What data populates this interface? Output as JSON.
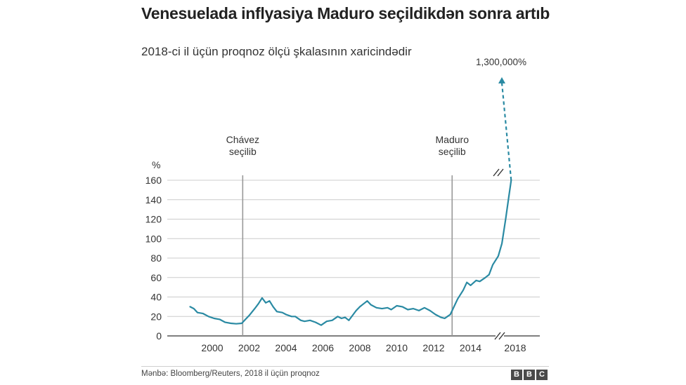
{
  "header": {
    "title": "Venesuelada inflyasiya Maduro seçildikdən sonra artıb",
    "subtitle": "2018-ci il üçün proqnoz ölçü şkalasının xaricindədir"
  },
  "footer": {
    "source": "Mənbə: Bloomberg/Reuters, 2018 il üçün proqnoz",
    "logo_letters": [
      "B",
      "B",
      "C"
    ]
  },
  "chart_data": {
    "type": "line",
    "title": "Venesuelada inflyasiya Maduro seçildikdən sonra artıb",
    "subtitle": "2018-ci il üçün proqnoz ölçü şkalasının xaricindədir",
    "ylabel": "%",
    "ylim": [
      0,
      160
    ],
    "yticks": [
      0,
      20,
      40,
      60,
      80,
      100,
      120,
      140,
      160
    ],
    "xticks": [
      "2000",
      "2002",
      "2004",
      "2006",
      "2008",
      "2010",
      "2012",
      "2014",
      "2018"
    ],
    "grid": true,
    "axis_break": "between 2015 and 2018",
    "colors": {
      "line": "#2a8aa3",
      "markers": "#999999",
      "grid": "#cccccc"
    },
    "events": [
      {
        "label_line1": "Chávez",
        "label_line2": "seçilib",
        "year": 2001.65
      },
      {
        "label_line1": "Maduro",
        "label_line2": "seçilib",
        "year": 2013.0
      }
    ],
    "forecast": {
      "year": 2018,
      "value": 1300000,
      "label": "1,300,000%"
    },
    "series": [
      {
        "values_year_pct": [
          [
            1998.8,
            30
          ],
          [
            1999.0,
            28
          ],
          [
            1999.2,
            24
          ],
          [
            1999.5,
            23
          ],
          [
            1999.8,
            20
          ],
          [
            2000.1,
            18
          ],
          [
            2000.4,
            17
          ],
          [
            2000.7,
            14
          ],
          [
            2001.0,
            13
          ],
          [
            2001.3,
            12.5
          ],
          [
            2001.6,
            13
          ],
          [
            2001.8,
            17
          ],
          [
            2002.0,
            21
          ],
          [
            2002.3,
            28
          ],
          [
            2002.5,
            33
          ],
          [
            2002.7,
            39
          ],
          [
            2002.9,
            34
          ],
          [
            2003.1,
            36
          ],
          [
            2003.3,
            30
          ],
          [
            2003.5,
            25
          ],
          [
            2003.8,
            24
          ],
          [
            2004.0,
            22
          ],
          [
            2004.3,
            20
          ],
          [
            2004.5,
            20
          ],
          [
            2004.8,
            16
          ],
          [
            2005.0,
            15
          ],
          [
            2005.3,
            16
          ],
          [
            2005.6,
            14
          ],
          [
            2005.9,
            11
          ],
          [
            2006.2,
            15
          ],
          [
            2006.5,
            16
          ],
          [
            2006.8,
            20
          ],
          [
            2007.0,
            18
          ],
          [
            2007.2,
            19
          ],
          [
            2007.4,
            16
          ],
          [
            2007.6,
            21
          ],
          [
            2007.8,
            26
          ],
          [
            2008.0,
            30
          ],
          [
            2008.2,
            33
          ],
          [
            2008.4,
            36
          ],
          [
            2008.6,
            32
          ],
          [
            2008.9,
            29
          ],
          [
            2009.2,
            28
          ],
          [
            2009.5,
            29
          ],
          [
            2009.7,
            27
          ],
          [
            2010.0,
            31
          ],
          [
            2010.3,
            30
          ],
          [
            2010.6,
            27
          ],
          [
            2010.9,
            28
          ],
          [
            2011.2,
            26
          ],
          [
            2011.5,
            29
          ],
          [
            2011.8,
            26
          ],
          [
            2012.1,
            22
          ],
          [
            2012.4,
            19
          ],
          [
            2012.6,
            18
          ],
          [
            2012.9,
            22
          ],
          [
            2013.0,
            26
          ],
          [
            2013.3,
            38
          ],
          [
            2013.6,
            47
          ],
          [
            2013.8,
            55
          ],
          [
            2014.0,
            52
          ],
          [
            2014.3,
            57
          ],
          [
            2014.5,
            56
          ],
          [
            2014.8,
            60
          ],
          [
            2015.0,
            63
          ],
          [
            2015.2,
            73
          ],
          [
            2015.5,
            82
          ],
          [
            2015.7,
            95
          ],
          [
            2015.9,
            120
          ],
          [
            2016.05,
            140
          ],
          [
            2016.2,
            160
          ]
        ]
      }
    ]
  }
}
